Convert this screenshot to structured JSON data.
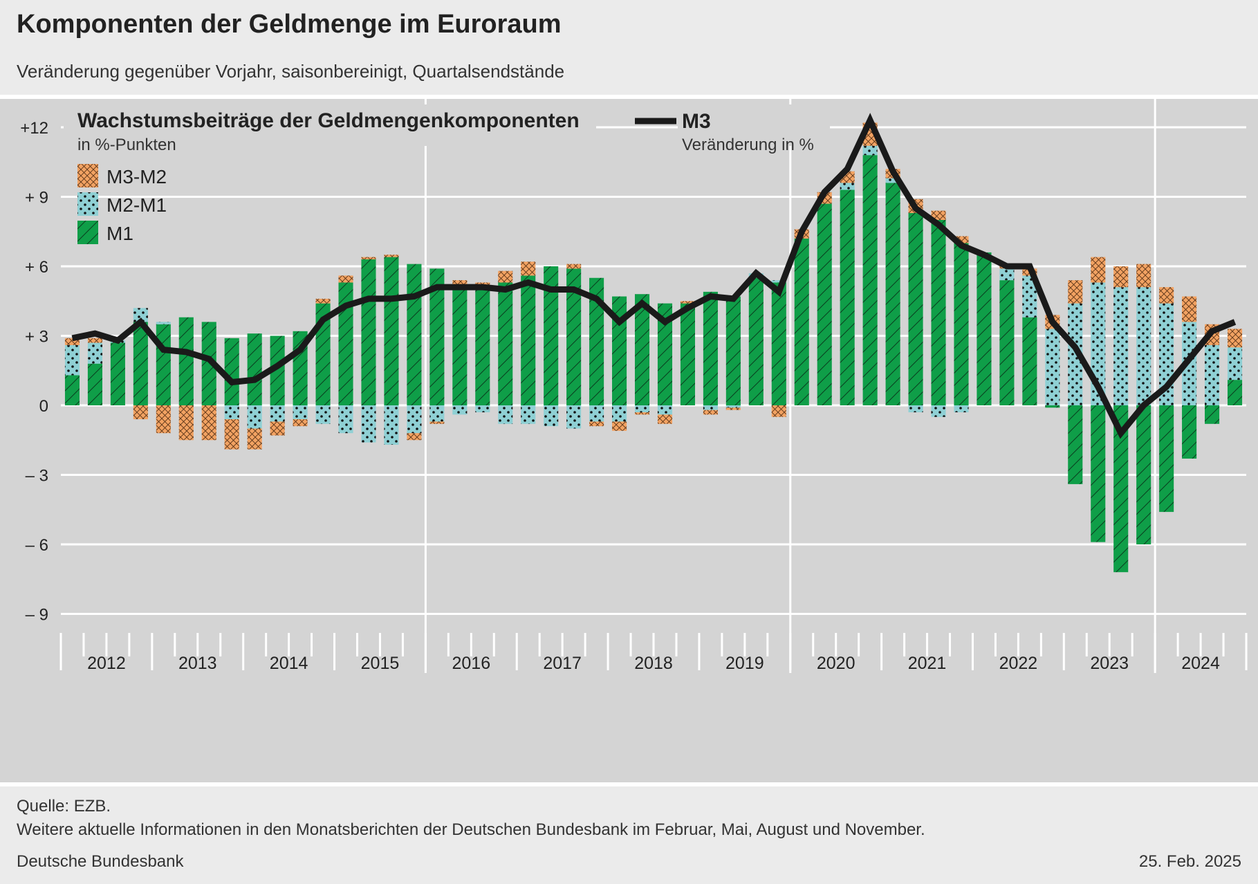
{
  "title": "Komponenten der Geldmenge im Euroraum",
  "subtitle": "Veränderung gegenüber Vorjahr, saisonbereinigt, Quartalsendstände",
  "footer": {
    "source": "Quelle: EZB.",
    "note": "Weitere aktuelle Informationen in den Monatsberichten der Deutschen Bundesbank im Februar, Mai, August und November.",
    "publisher": "Deutsche Bundesbank",
    "date": "25. Feb. 2025"
  },
  "colors": {
    "panel_bg": "#d4d4d4",
    "page_bg": "#ebebeb",
    "m1": "#0f9e48",
    "m2m1": "#8fd0d4",
    "m3m2": "#f2a262",
    "m3_line": "#1a1a1a",
    "grid": "#ffffff"
  },
  "chart_data": {
    "type": "bar",
    "stacked": true,
    "legend_left": {
      "title": "Wachstumsbeiträge der Geldmengenkomponenten",
      "unit": "in %-Punkten",
      "items": [
        {
          "name": "M3-M2",
          "pattern": "crosshatch"
        },
        {
          "name": "M2-M1",
          "pattern": "dots"
        },
        {
          "name": "M1",
          "pattern": "diagonal"
        }
      ]
    },
    "legend_right": {
      "title": "M3",
      "unit": "Veränderung in %"
    },
    "y_ticks": [
      {
        "value": 12,
        "label": "+12"
      },
      {
        "value": 9,
        "label": "+ 9"
      },
      {
        "value": 6,
        "label": "+ 6"
      },
      {
        "value": 3,
        "label": "+ 3"
      },
      {
        "value": 0,
        "label": "0"
      },
      {
        "value": -3,
        "label": "– 3"
      },
      {
        "value": -6,
        "label": "– 6"
      },
      {
        "value": -9,
        "label": "– 9"
      }
    ],
    "ylim": [
      -9.6,
      12.2
    ],
    "years": [
      "2012",
      "2013",
      "2014",
      "2015",
      "2016",
      "2017",
      "2018",
      "2019",
      "2020",
      "2021",
      "2022",
      "2023",
      "2024"
    ],
    "quarters_per_year": 4,
    "series": [
      {
        "name": "M1",
        "values": [
          1.3,
          1.8,
          2.7,
          3.6,
          3.5,
          3.8,
          3.6,
          2.9,
          3.1,
          3.0,
          3.2,
          4.4,
          5.3,
          6.3,
          6.4,
          6.1,
          5.9,
          5.0,
          5.1,
          5.3,
          5.6,
          6.0,
          5.9,
          5.5,
          4.7,
          4.8,
          4.4,
          4.4,
          4.9,
          4.7,
          5.5,
          5.3,
          7.2,
          8.7,
          9.3,
          10.8,
          9.6,
          8.3,
          8.0,
          7.0,
          6.6,
          5.4,
          3.8,
          -0.1,
          -3.4,
          -5.9,
          -7.2,
          -6.0,
          -4.6,
          -2.3,
          -0.8,
          1.1
        ]
      },
      {
        "name": "M2-M1",
        "values": [
          1.3,
          0.9,
          0.1,
          0.6,
          0.1,
          0.0,
          0.0,
          -0.6,
          -1.0,
          -0.7,
          -0.6,
          -0.8,
          -1.2,
          -1.6,
          -1.7,
          -1.2,
          -0.7,
          -0.4,
          -0.3,
          -0.8,
          -0.8,
          -0.9,
          -1.0,
          -0.7,
          -0.7,
          -0.3,
          -0.4,
          0.0,
          -0.2,
          -0.1,
          0.2,
          0.1,
          0.0,
          0.0,
          0.3,
          0.4,
          0.2,
          -0.3,
          -0.5,
          -0.3,
          0.0,
          0.5,
          1.8,
          3.3,
          4.4,
          5.3,
          5.1,
          5.1,
          4.4,
          3.6,
          2.6,
          1.4
        ]
      },
      {
        "name": "M3-M2",
        "values": [
          0.3,
          0.2,
          0.0,
          0.0,
          0.0,
          0.0,
          0.0,
          0.0,
          0.0,
          0.0,
          0.0,
          0.2,
          0.3,
          0.1,
          0.1,
          0.0,
          0.0,
          0.4,
          0.2,
          0.5,
          0.6,
          0.0,
          0.2,
          0.0,
          0.0,
          0.0,
          0.0,
          0.1,
          0.0,
          0.0,
          0.0,
          0.0,
          0.4,
          0.5,
          0.5,
          1.0,
          0.4,
          0.6,
          0.4,
          0.3,
          0.0,
          0.2,
          0.3,
          0.6,
          1.0,
          1.1,
          0.9,
          1.0,
          0.7,
          1.1,
          0.9,
          0.8
        ]
      },
      {
        "name": "M3-M2 negative",
        "values": [
          0.0,
          0.0,
          0.0,
          0.0,
          0.0,
          0.0,
          0.0,
          0.0,
          0.0,
          0.0,
          0.0,
          0.0,
          0.0,
          0.0,
          0.0,
          0.0,
          0.0,
          0.0,
          0.0,
          0.0,
          0.0,
          0.0,
          0.0,
          0.0,
          0.0,
          0.0,
          0.0,
          0.0,
          0.0,
          0.0,
          0.0,
          0.0,
          0.0,
          0.0,
          0.0,
          0.0,
          0.0,
          0.0,
          0.0,
          0.0,
          0.0,
          0.0,
          0.0,
          0.0,
          0.0,
          0.0,
          0.0,
          0.0,
          0.0,
          0.0,
          0.0,
          0.0
        ],
        "negatives": [
          0.0,
          0.0,
          0.0,
          -0.6,
          -1.2,
          -1.5,
          -1.5,
          -1.3,
          -0.9,
          -0.6,
          -0.3,
          0.0,
          0.0,
          0.0,
          0.0,
          -0.3,
          -0.1,
          0.0,
          0.0,
          0.0,
          0.0,
          0.0,
          0.0,
          -0.2,
          -0.4,
          -0.1,
          -0.4,
          0.0,
          -0.2,
          -0.1,
          0.0,
          -0.5,
          0.0,
          0.0,
          0.0,
          0.0,
          0.0,
          0.0,
          0.0,
          0.0,
          0.0,
          0.0,
          0.0,
          0.0,
          0.0,
          0.0,
          0.0,
          0.0,
          0.0,
          0.0,
          0.0,
          0.0
        ]
      },
      {
        "name": "M3",
        "type": "line",
        "values": [
          2.9,
          3.1,
          2.8,
          3.6,
          2.4,
          2.3,
          2.0,
          1.0,
          1.1,
          1.7,
          2.4,
          3.7,
          4.3,
          4.6,
          4.6,
          4.7,
          5.1,
          5.1,
          5.1,
          5.0,
          5.3,
          5.0,
          5.0,
          4.6,
          3.6,
          4.4,
          3.6,
          4.2,
          4.7,
          4.6,
          5.7,
          4.9,
          7.5,
          9.2,
          10.2,
          12.3,
          10.1,
          8.5,
          7.8,
          6.9,
          6.5,
          6.0,
          6.0,
          3.6,
          2.5,
          0.8,
          -1.2,
          0.0,
          0.8,
          2.0,
          3.2,
          3.6
        ]
      }
    ]
  }
}
